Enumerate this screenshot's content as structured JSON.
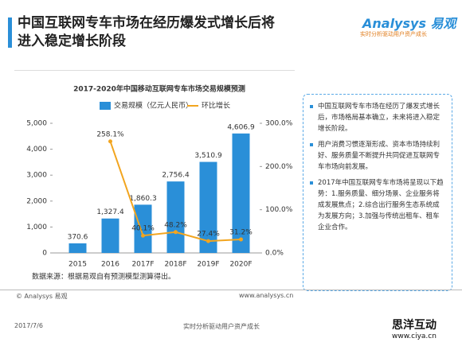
{
  "header": {
    "title_lines": [
      "中国互联网专车市场在经历爆发式增长后将",
      "进入稳定增长阶段"
    ],
    "logo": "Analysys 易观",
    "tagline": "实时分析驱动用户资产成长"
  },
  "chart_data": {
    "type": "bar",
    "title": "2017-2020年中国移动互联网专车市场交易规模预测",
    "categories": [
      "2015",
      "2016",
      "2017F",
      "2018F",
      "2019F",
      "2020F"
    ],
    "series": [
      {
        "name": "交易规模（亿元人民币）",
        "color": "#2a8fd8",
        "values": [
          370.6,
          1327.4,
          1860.3,
          2756.4,
          3510.9,
          4606.9
        ],
        "value_labels": [
          "370.6",
          "1,327.4",
          "1,860.3",
          "2,756.4",
          "3,510.9",
          "4,606.9"
        ]
      },
      {
        "name": "环比增长",
        "type": "line",
        "axis": "y2",
        "color": "#f2a51f",
        "values": [
          null,
          258.1,
          40.1,
          48.2,
          27.4,
          31.2
        ],
        "value_labels": [
          null,
          "258.1%",
          "40.1%",
          "48.2%",
          "27.4%",
          "31.2%"
        ]
      }
    ],
    "ylim": [
      0,
      5000
    ],
    "yticks": [
      {
        "value": 0,
        "label": "0"
      },
      {
        "value": 1000,
        "label": "1,000"
      },
      {
        "value": 2000,
        "label": "2,000"
      },
      {
        "value": 3000,
        "label": "3,000"
      },
      {
        "value": 4000,
        "label": "4,000"
      },
      {
        "value": 5000,
        "label": "5,000"
      }
    ],
    "y2lim": [
      0,
      300
    ],
    "y2ticks": [
      {
        "value": 0,
        "label": "0.0%"
      },
      {
        "value": 100,
        "label": "100.0%"
      },
      {
        "value": 200,
        "label": "200.0%"
      },
      {
        "value": 300,
        "label": "300.0%"
      }
    ],
    "source": "数据来源：根据易观自有预测模型测算得出。"
  },
  "notes": [
    "中国互联网专车市场在经历了爆发式增长后，市场格局基本确立，未来将进入稳定增长阶段。",
    "用户消费习惯逐渐形成、资本市场持续利好、服务质量不断提升共同促进互联网专车市场向前发展。",
    "2017年中国互联网专车市场将呈现以下趋势：1.服务质量、细分场景、企业服务将成发展焦点；2.综合出行服务生态系统成为发展方向；3.加强与传统出租车、租车企业合作。"
  ],
  "footer": {
    "copyright": "© Analysys 易观",
    "site": "www.analysys.cn",
    "date": "2017/7/6",
    "slogan": "实时分析驱动用户资产成长",
    "watermark": "思洋互动",
    "watermark_site": "www.ciya.cn"
  }
}
